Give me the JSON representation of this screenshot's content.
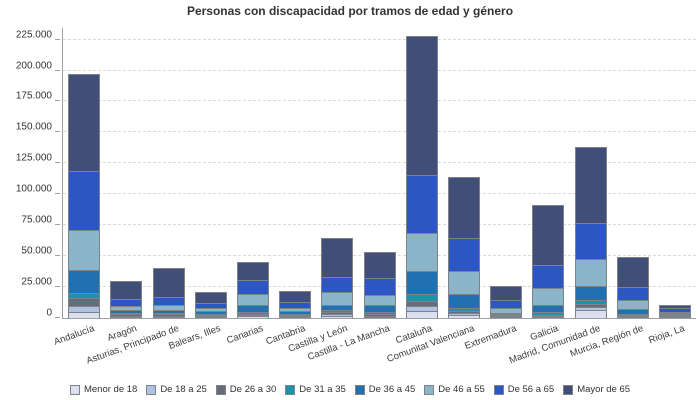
{
  "title": "Personas con discapacidad por tramos de edad y género",
  "colors": {
    "background": "#ffffff",
    "title_text": "#333333",
    "axis_line": "#9aa0a6",
    "gridline": "#d9d9d9",
    "segment_border": "#7e838a",
    "tick_text": "#333333"
  },
  "y_axis": {
    "tick_labels": [
      "0",
      "25.000",
      "50.000",
      "75.000",
      "100.000",
      "125.000",
      "150.000",
      "175.000",
      "200.000",
      "225.000"
    ],
    "tick_values": [
      0,
      25000,
      50000,
      75000,
      100000,
      125000,
      150000,
      175000,
      200000,
      225000
    ]
  },
  "chart_data": {
    "type": "bar",
    "stacked": true,
    "title": "Personas con discapacidad por tramos de edad y género",
    "xlabel": "",
    "ylabel": "",
    "ylim": [
      0,
      234000
    ],
    "y_tick_step": 25000,
    "grid": "horizontal-dashed",
    "legend_position": "bottom",
    "categories": [
      "Andalucía",
      "Aragón",
      "Asturias, Principado de",
      "Balears, Illes",
      "Canarias",
      "Cantabria",
      "Castilla y León",
      "Castilla - La Mancha",
      "Cataluña",
      "Comunitat Valenciana",
      "Extremadura",
      "Galicia",
      "Madrid, Comunidad de",
      "Murcia, Región de",
      "Rioja, La"
    ],
    "series": [
      {
        "name": "Menor de 18",
        "color": "#dcdfee",
        "values": [
          4500,
          1000,
          1000,
          1000,
          1300,
          800,
          1700,
          1100,
          5400,
          2600,
          300,
          1000,
          6500,
          600,
          200
        ]
      },
      {
        "name": "De 18 a 25",
        "color": "#b0c2e1",
        "values": [
          5500,
          900,
          900,
          700,
          1000,
          500,
          1300,
          800,
          4300,
          1600,
          200,
          700,
          2500,
          300,
          100
        ]
      },
      {
        "name": "De 26 a 30",
        "color": "#666d76",
        "values": [
          6000,
          1100,
          1000,
          800,
          1100,
          600,
          1500,
          1300,
          4400,
          1800,
          300,
          1000,
          2000,
          500,
          200
        ]
      },
      {
        "name": "De 31 a 35",
        "color": "#1d93a9",
        "values": [
          4500,
          1000,
          900,
          700,
          1200,
          500,
          1800,
          1600,
          5300,
          2100,
          300,
          1900,
          3500,
          800,
          200
        ]
      },
      {
        "name": "De 36 a 45",
        "color": "#2170b0",
        "values": [
          18500,
          2500,
          2700,
          1900,
          5900,
          2200,
          4200,
          5500,
          18900,
          11300,
          700,
          6200,
          11000,
          4100,
          600
        ]
      },
      {
        "name": "De 46 a 55",
        "color": "#8ab4c7",
        "values": [
          32500,
          3200,
          4000,
          2700,
          8600,
          2700,
          10200,
          8700,
          30100,
          18300,
          4000,
          13400,
          22400,
          7300,
          900
        ]
      },
      {
        "name": "De 56 a 65",
        "color": "#2d56c5",
        "values": [
          47500,
          5300,
          6700,
          4000,
          11500,
          4500,
          12600,
          13000,
          47200,
          26900,
          6600,
          18400,
          29300,
          10700,
          3200
        ]
      },
      {
        "name": "Mayor de 65",
        "color": "#414f78",
        "values": [
          78500,
          15000,
          23300,
          9200,
          14400,
          9400,
          31700,
          21000,
          112400,
          49400,
          11600,
          48400,
          60800,
          23700,
          2600
        ]
      }
    ],
    "totals": [
      197500,
      30000,
      40500,
      21000,
      45000,
      21200,
      65000,
      53000,
      228000,
      114000,
      24000,
      91000,
      138000,
      48000,
      8000
    ]
  }
}
